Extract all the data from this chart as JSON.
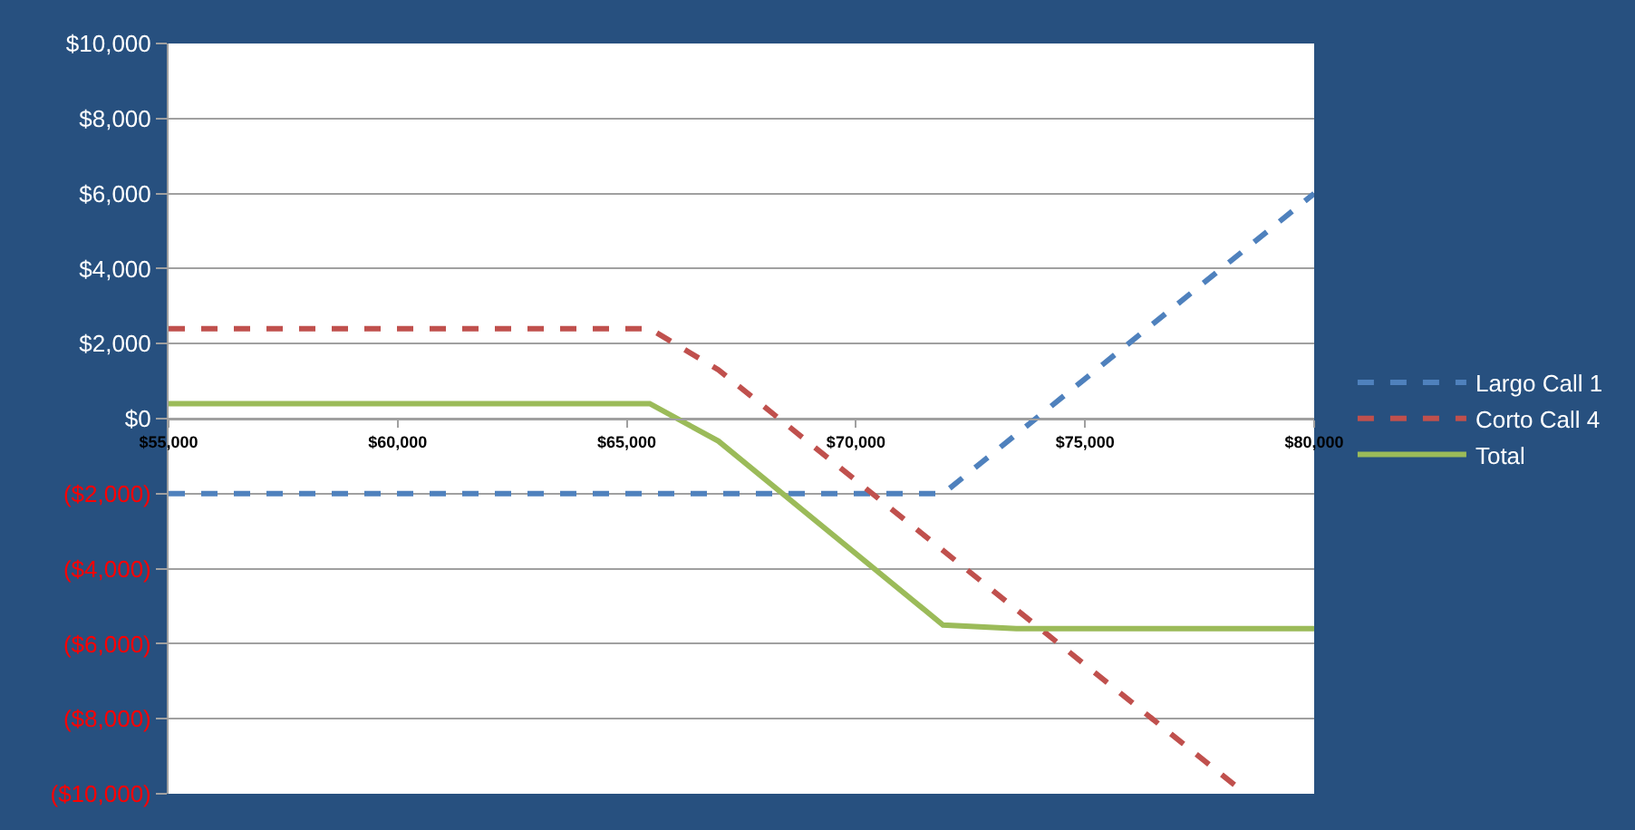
{
  "chart_data": {
    "type": "line",
    "xlim": [
      55000,
      80000
    ],
    "xticks": [
      {
        "value": 55000,
        "label": "$55,000"
      },
      {
        "value": 60000,
        "label": "$60,000"
      },
      {
        "value": 65000,
        "label": "$65,000"
      },
      {
        "value": 70000,
        "label": "$70,000"
      },
      {
        "value": 75000,
        "label": "$75,000"
      },
      {
        "value": 80000,
        "label": "$80,000"
      }
    ],
    "ylim": [
      -10000,
      10000
    ],
    "yticks": [
      {
        "value": -10000,
        "label": "($10,000)"
      },
      {
        "value": -8000,
        "label": "($8,000)"
      },
      {
        "value": -6000,
        "label": "($6,000)"
      },
      {
        "value": -4000,
        "label": "($4,000)"
      },
      {
        "value": -2000,
        "label": "($2,000)"
      },
      {
        "value": 0,
        "label": "$0"
      },
      {
        "value": 2000,
        "label": "$2,000"
      },
      {
        "value": 4000,
        "label": "$4,000"
      },
      {
        "value": 6000,
        "label": "$6,000"
      },
      {
        "value": 8000,
        "label": "$8,000"
      },
      {
        "value": 10000,
        "label": "$10,000"
      }
    ],
    "grid": "y",
    "legend": "right",
    "marker": "none",
    "series": [
      {
        "name": "Largo Call 1",
        "color": "#4f81bd",
        "line_style": "dashed",
        "x": [
          55000,
          71900,
          80000
        ],
        "values": [
          -2000,
          -2000,
          6000
        ]
      },
      {
        "name": "Corto Call 4",
        "color": "#c0504d",
        "line_style": "dashed",
        "x": [
          55000,
          65500,
          67000,
          78500
        ],
        "values": [
          2400,
          2400,
          1300,
          -10000
        ]
      },
      {
        "name": "Total",
        "color": "#9bbb59",
        "line_style": "solid",
        "x": [
          55000,
          65500,
          67000,
          71900,
          73500,
          80000
        ],
        "values": [
          400,
          400,
          -600,
          -5500,
          -5600,
          -5600
        ]
      }
    ]
  }
}
